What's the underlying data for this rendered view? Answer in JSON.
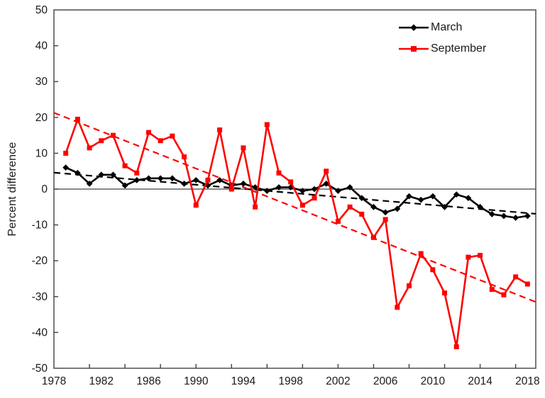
{
  "figure": {
    "background": "#ffffff",
    "border_color": "#595959",
    "tick_color": "#404040",
    "zero_line_color": "#404040",
    "label_color": "#1a1a1a"
  },
  "legend": {
    "items": [
      {
        "label": "March",
        "color": "#000000",
        "marker": "diamond"
      },
      {
        "label": "September",
        "color": "#fe0000",
        "marker": "square"
      }
    ]
  },
  "chart_data": {
    "type": "line",
    "title": "",
    "xlabel": "",
    "ylabel": "Percent difference",
    "x_range": [
      1978,
      2018.7
    ],
    "y_range": [
      -50,
      50
    ],
    "grid": false,
    "legend_position": "top-right-inside",
    "y_tick_labels": [
      50,
      40,
      30,
      20,
      10,
      0,
      -10,
      -20,
      -30,
      -40,
      -50
    ],
    "y_tick_marks": [
      40,
      30,
      20,
      10,
      0,
      -10,
      -20,
      -30,
      -40
    ],
    "x_tick_marks": [
      1981,
      1984,
      1987,
      1990,
      1993,
      1996,
      1999,
      2002,
      2005,
      2008,
      2011,
      2014,
      2017
    ],
    "x_label_years": [
      1978,
      1982,
      1986,
      1990,
      1994,
      1998,
      2002,
      2006,
      2010,
      2014,
      2018
    ],
    "zero_line": true,
    "x": [
      1979,
      1980,
      1981,
      1982,
      1983,
      1984,
      1985,
      1986,
      1987,
      1988,
      1989,
      1990,
      1991,
      1992,
      1993,
      1994,
      1995,
      1996,
      1997,
      1998,
      1999,
      2000,
      2001,
      2002,
      2003,
      2004,
      2005,
      2006,
      2007,
      2008,
      2009,
      2010,
      2011,
      2012,
      2013,
      2014,
      2015,
      2016,
      2017,
      2018
    ],
    "series": [
      {
        "name": "March",
        "color": "#000000",
        "marker": "diamond",
        "line_style": "solid",
        "values": [
          6,
          4.5,
          1.5,
          4,
          4,
          1,
          2.5,
          3,
          3,
          3,
          1.5,
          2.5,
          1,
          2.5,
          1,
          1.5,
          0.5,
          -0.5,
          0.5,
          0.5,
          -0.5,
          0,
          1.5,
          -0.5,
          0.5,
          -2.5,
          -5,
          -6.5,
          -5.5,
          -2,
          -3,
          -2,
          -5,
          -1.5,
          -2.5,
          -5,
          -7,
          -7.5,
          -8,
          -7.5
        ],
        "trend": {
          "x0": 1978,
          "v0": 4.6,
          "x1": 2018.7,
          "v1": -6.9
        }
      },
      {
        "name": "September",
        "color": "#fe0000",
        "marker": "square",
        "line_style": "solid",
        "values": [
          10,
          19.5,
          11.5,
          13.5,
          15,
          6.5,
          4.5,
          15.8,
          13.5,
          14.8,
          9,
          -4.5,
          2.5,
          16.5,
          0,
          11.5,
          -5,
          18,
          4.5,
          2,
          -4.5,
          -2.5,
          5,
          -9,
          -5,
          -7,
          -13.5,
          -8.5,
          -33,
          -27,
          -18,
          -22.5,
          -29,
          -44,
          -19,
          -18.5,
          -28,
          -29.5,
          -24.5,
          -26.5
        ],
        "trend": {
          "x0": 1978,
          "v0": 21.3,
          "x1": 2018.7,
          "v1": -31.5
        }
      }
    ]
  }
}
